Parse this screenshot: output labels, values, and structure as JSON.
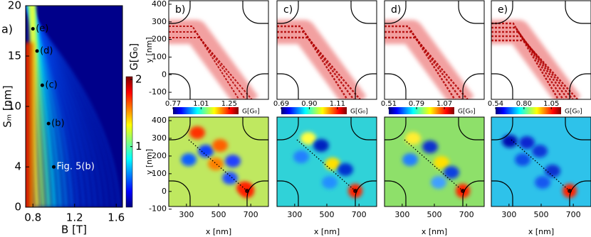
{
  "chart_data": [
    {
      "type": "heatmap",
      "label": "a)",
      "xlabel": "B [T]",
      "ylabel": "Sₘ [nm]",
      "xlim": [
        0.73,
        1.66
      ],
      "ylim": [
        0,
        20
      ],
      "xticks": [
        0.8,
        1.2,
        1.6
      ],
      "yticks": [
        0,
        4,
        10,
        15,
        20
      ],
      "colorbar": {
        "label": "G[G₀]",
        "lim": [
          0.1,
          2.04
        ],
        "ticks": [
          1,
          2
        ]
      },
      "annotations": [
        {
          "text": "(e)",
          "x": 0.8,
          "y": 17.7,
          "color": "#000000"
        },
        {
          "text": "(d)",
          "x": 0.84,
          "y": 15.5,
          "color": "#000000"
        },
        {
          "text": "(c)",
          "x": 0.89,
          "y": 12.1,
          "color": "#000000"
        },
        {
          "text": "(b)",
          "x": 0.95,
          "y": 8.3,
          "color": "#000000"
        },
        {
          "text": "Fig. 5(b)",
          "x": 1.0,
          "y": 4,
          "color": "#ffffff"
        }
      ]
    },
    {
      "type": "map-pair",
      "label": "b)",
      "xlabel": "x [nm]",
      "xlim": [
        190,
        810
      ],
      "xticks": [
        300,
        500,
        700
      ],
      "ylabel": "y [nm]",
      "yticks": [
        400,
        300,
        200,
        100,
        0,
        -100
      ],
      "ylim_top": [
        -140,
        420
      ],
      "ylim_bottom": [
        -85,
        420
      ],
      "colorbar": {
        "label": "G[G₀]",
        "lim": [
          0.77,
          1.33
        ],
        "ticks": [
          0.77,
          1.01,
          1.25
        ]
      }
    },
    {
      "type": "map-pair",
      "label": "c)",
      "xlabel": "x [nm]",
      "xlim": [
        190,
        810
      ],
      "xticks": [
        300,
        500,
        700
      ],
      "colorbar": {
        "label": "G[G₀]",
        "lim": [
          0.69,
          1.18
        ],
        "ticks": [
          0.69,
          {
            "value": 0.9,
            "label": "0.90"
          },
          1.11
        ]
      }
    },
    {
      "type": "map-pair",
      "label": "d)",
      "xlabel": "x [nm]",
      "xlim": [
        190,
        810
      ],
      "xticks": [
        300,
        500,
        700
      ],
      "colorbar": {
        "label": "G[G₀]",
        "lim": [
          0.51,
          1.17
        ],
        "ticks": [
          0.51,
          0.79,
          1.07
        ]
      }
    },
    {
      "type": "map-pair",
      "label": "e)",
      "xlabel": "x [nm]",
      "xlim": [
        190,
        810
      ],
      "xticks": [
        300,
        500,
        700
      ],
      "colorbar": {
        "label": "G[G₀]",
        "lim": [
          0.54,
          1.14
        ],
        "ticks": [
          0.54,
          {
            "value": 0.8,
            "label": "0.80"
          },
          1.05
        ]
      }
    }
  ]
}
